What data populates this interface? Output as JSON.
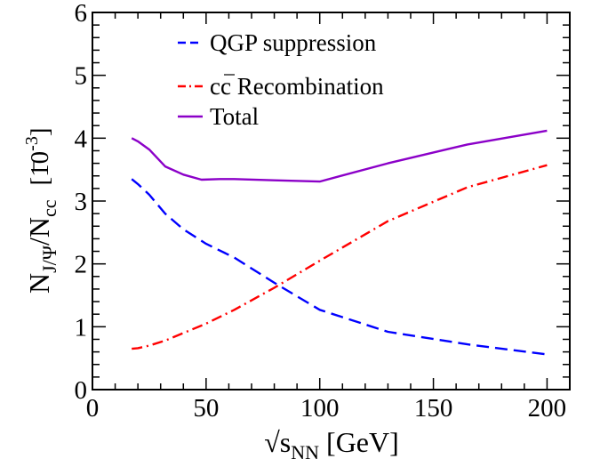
{
  "chart_data": {
    "type": "line",
    "title": "",
    "xlabel": "√s_NN [GeV]",
    "xlabel_parts": {
      "main": "√s",
      "sub": "NN",
      "unit": " [GeV]"
    },
    "ylabel": "N_J/Ψ / N_cc̄ [10^-3]",
    "ylabel_parts": {
      "n": "N",
      "num_sub": "J/Ψ",
      "slash": "/N",
      "den_sub": "cc",
      "unit_open": "[10",
      "unit_exp": "-3",
      "unit_close": "]"
    },
    "xlim": [
      0,
      210
    ],
    "ylim": [
      0,
      6
    ],
    "x_ticks": [
      0,
      50,
      100,
      150,
      200
    ],
    "x_tick_labels": [
      "0",
      "50",
      "100",
      "150",
      "200"
    ],
    "y_ticks": [
      0,
      1,
      2,
      3,
      4,
      5,
      6
    ],
    "y_tick_labels": [
      "0",
      "1",
      "2",
      "3",
      "4",
      "5",
      "6"
    ],
    "grid": false,
    "legend_position": "top-center",
    "series": [
      {
        "name": "QGP suppression",
        "legend_main": "QGP suppression",
        "color": "#0000ff",
        "style": "dashed",
        "x": [
          17.3,
          20,
          25,
          32,
          40,
          50,
          62.4,
          80,
          100,
          130,
          165,
          200
        ],
        "y": [
          3.35,
          3.27,
          3.1,
          2.8,
          2.55,
          2.32,
          2.1,
          1.7,
          1.27,
          0.92,
          0.72,
          0.56
        ]
      },
      {
        "name": "cc̄ Recombination",
        "legend_main": "cc",
        "legend_rest": " Recombination",
        "color": "#ff0000",
        "style": "dashdot",
        "x": [
          17.3,
          20,
          25,
          32,
          40,
          50,
          62.4,
          80,
          100,
          130,
          165,
          200
        ],
        "y": [
          0.65,
          0.66,
          0.7,
          0.78,
          0.9,
          1.05,
          1.27,
          1.62,
          2.05,
          2.68,
          3.22,
          3.57
        ]
      },
      {
        "name": "Total",
        "legend_main": "Total",
        "color": "#8b00c8",
        "style": "solid",
        "x": [
          17.3,
          20,
          25,
          32,
          40,
          48,
          56,
          62.4,
          80,
          100,
          130,
          165,
          200
        ],
        "y": [
          4.0,
          3.95,
          3.82,
          3.55,
          3.42,
          3.34,
          3.35,
          3.35,
          3.33,
          3.31,
          3.6,
          3.9,
          4.12
        ]
      }
    ]
  }
}
